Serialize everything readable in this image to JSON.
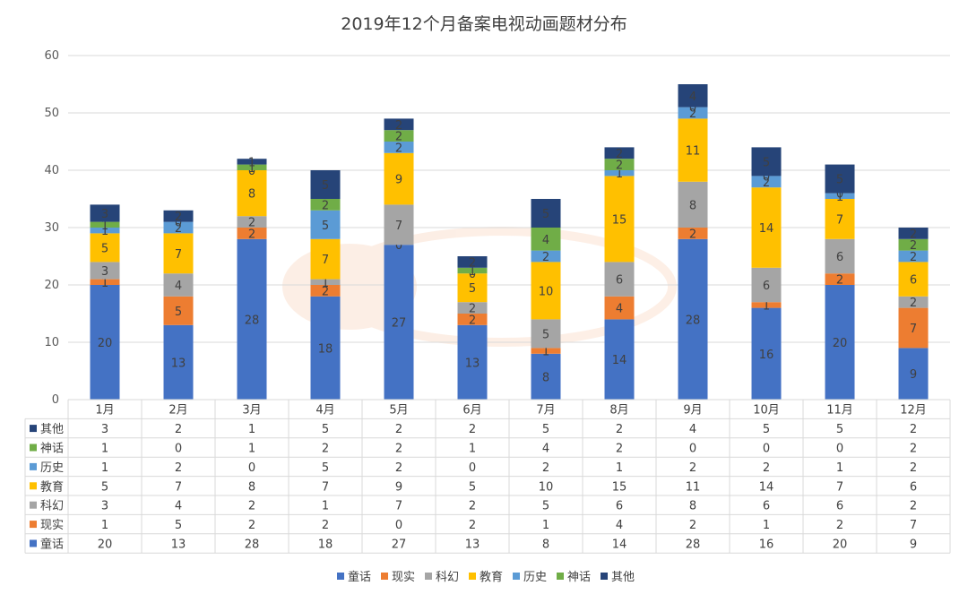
{
  "chart_data": {
    "type": "bar",
    "stacked": true,
    "title": "2019年12个月备案电视动画题材分布",
    "categories": [
      "1月",
      "2月",
      "3月",
      "4月",
      "5月",
      "6月",
      "7月",
      "8月",
      "9月",
      "10月",
      "11月",
      "12月"
    ],
    "ylim": [
      0,
      60
    ],
    "yticks": [
      0,
      10,
      20,
      30,
      40,
      50,
      60
    ],
    "grid": true,
    "legend_position": "bottom",
    "data_table": true,
    "series": [
      {
        "name": "童话",
        "color": "#4472C4",
        "values": [
          20,
          13,
          28,
          18,
          27,
          13,
          8,
          14,
          28,
          16,
          20,
          9
        ]
      },
      {
        "name": "现实",
        "color": "#ED7D31",
        "values": [
          1,
          5,
          2,
          2,
          0,
          2,
          1,
          4,
          2,
          1,
          2,
          7
        ]
      },
      {
        "name": "科幻",
        "color": "#A5A5A5",
        "values": [
          3,
          4,
          2,
          1,
          7,
          2,
          5,
          6,
          8,
          6,
          6,
          2
        ]
      },
      {
        "name": "教育",
        "color": "#FFC000",
        "values": [
          5,
          7,
          8,
          7,
          9,
          5,
          10,
          15,
          11,
          14,
          7,
          6
        ]
      },
      {
        "name": "历史",
        "color": "#5B9BD5",
        "values": [
          1,
          2,
          0,
          5,
          2,
          0,
          2,
          1,
          2,
          2,
          1,
          2
        ]
      },
      {
        "name": "神话",
        "color": "#70AD47",
        "values": [
          1,
          0,
          1,
          2,
          2,
          1,
          4,
          2,
          0,
          0,
          0,
          2
        ]
      },
      {
        "name": "其他",
        "color": "#264478",
        "values": [
          3,
          2,
          1,
          5,
          2,
          2,
          5,
          2,
          4,
          5,
          5,
          2
        ]
      }
    ]
  }
}
